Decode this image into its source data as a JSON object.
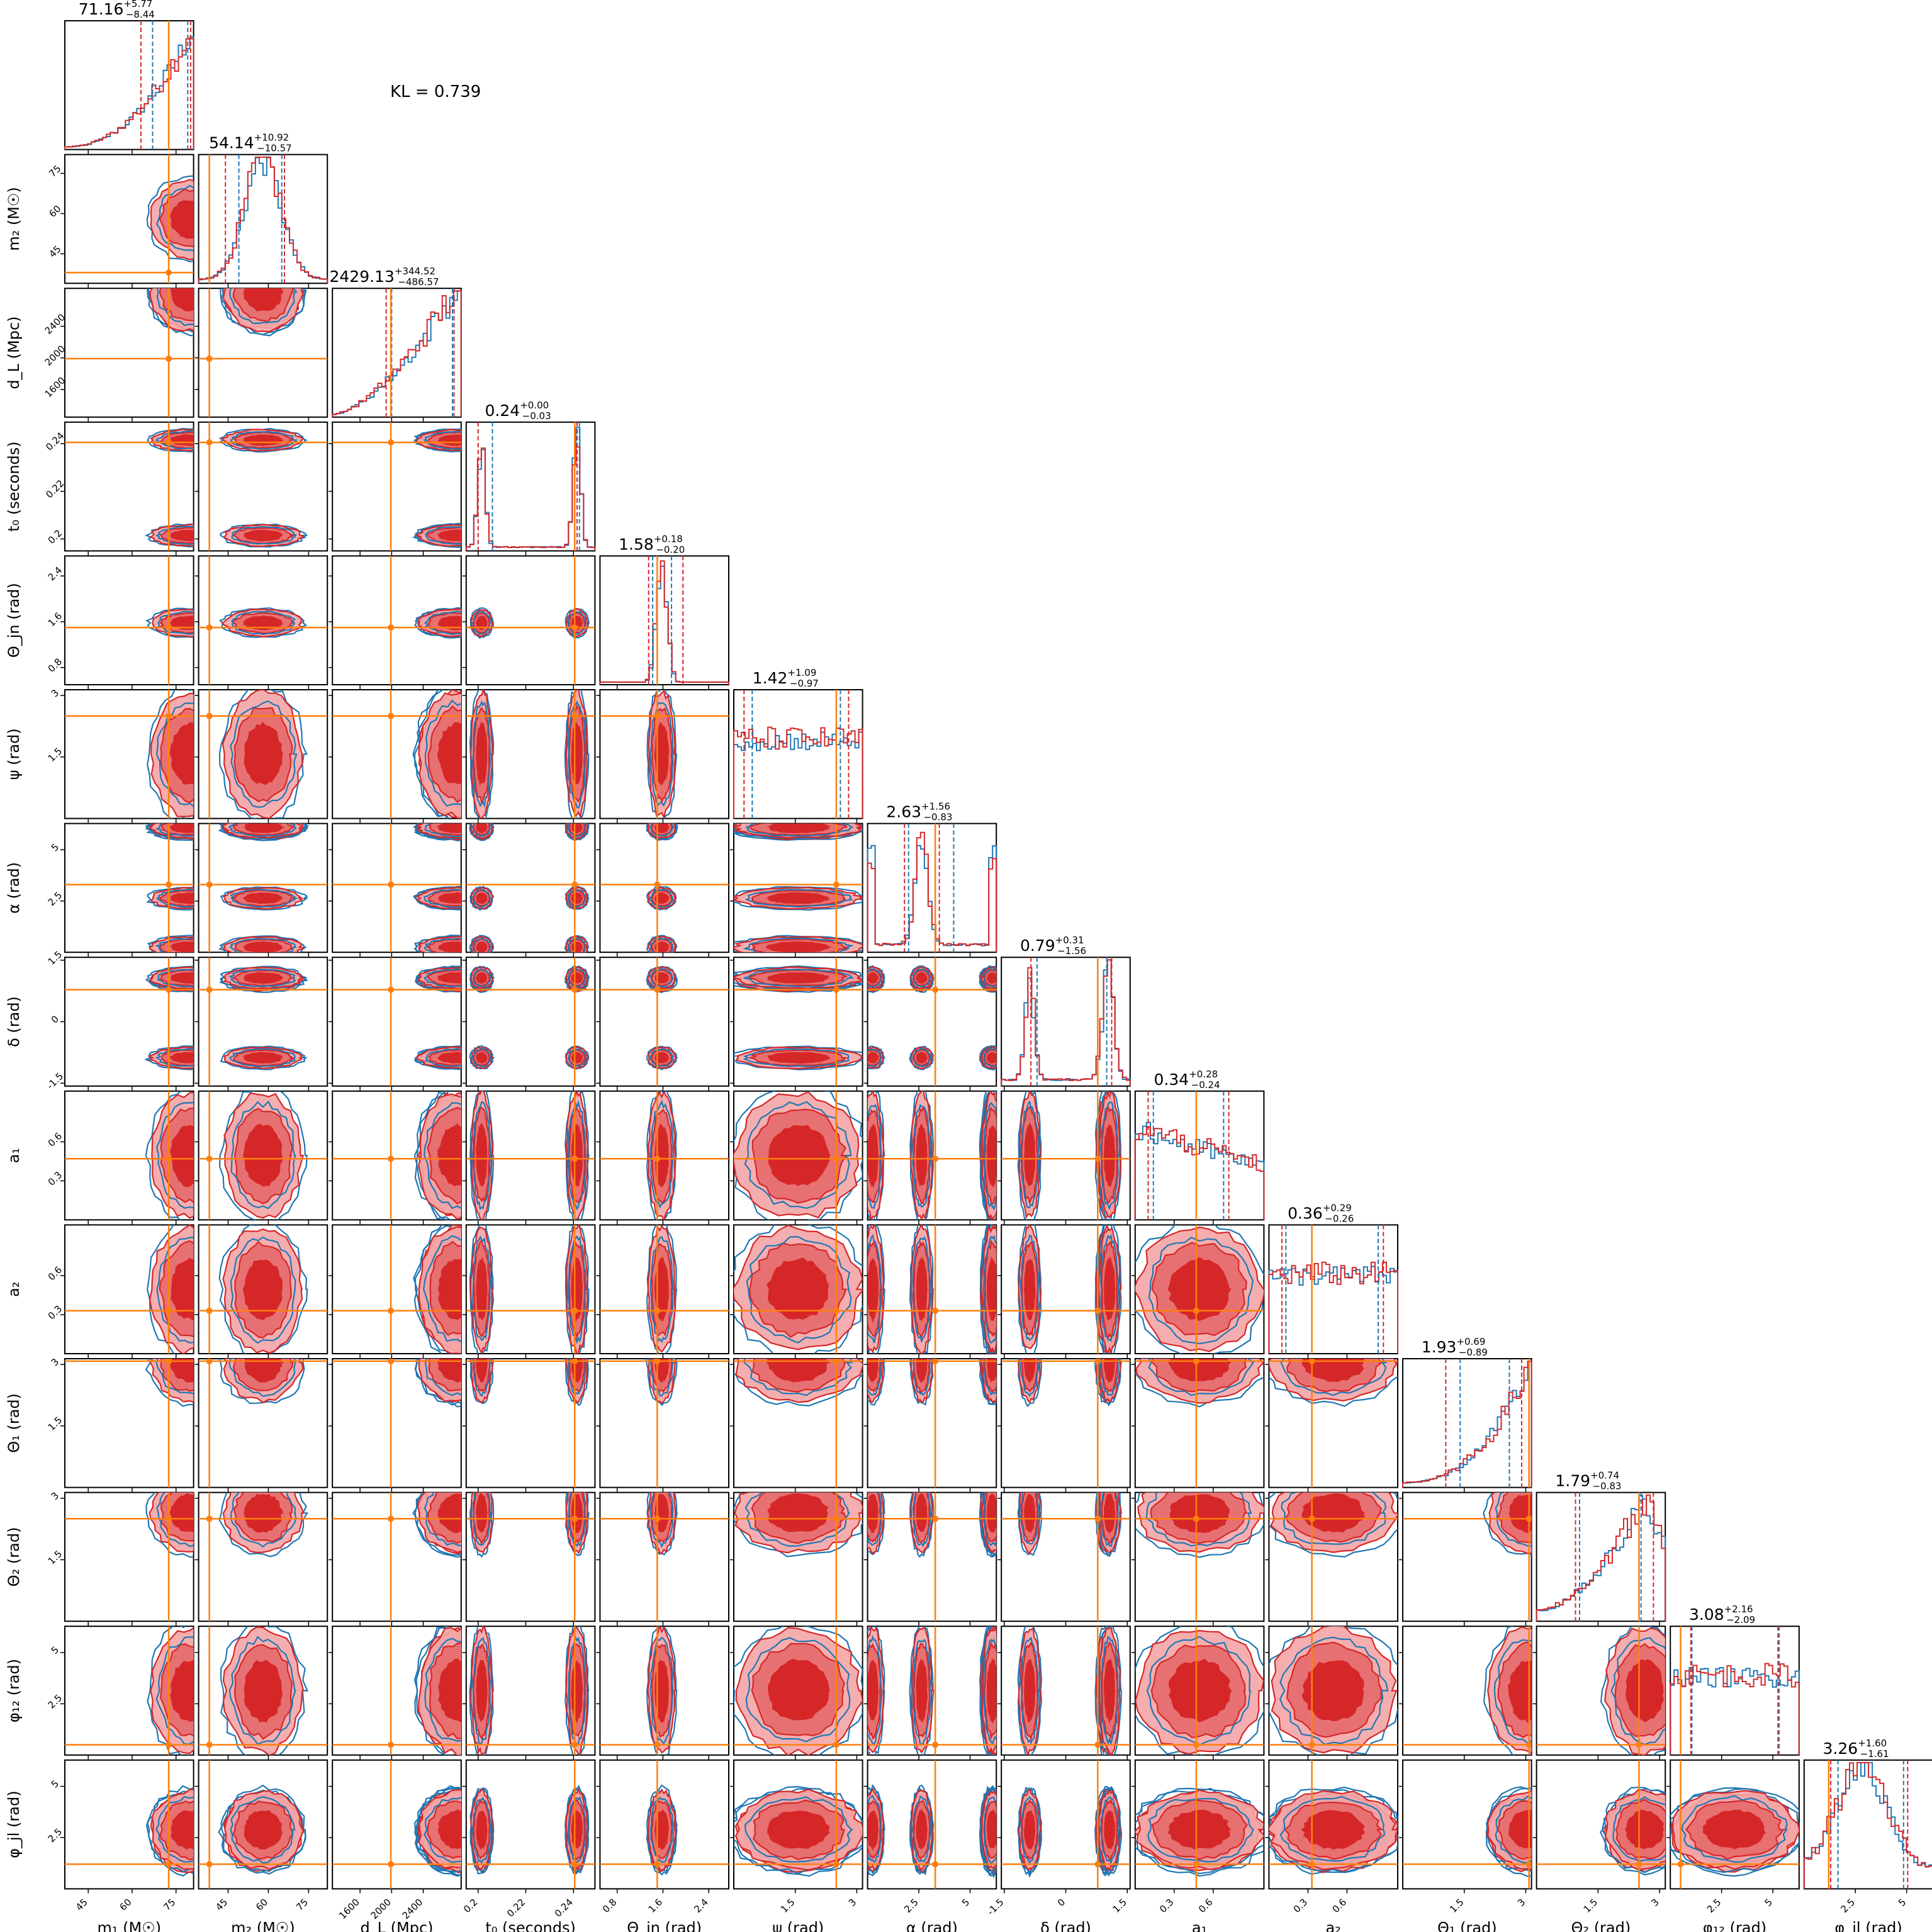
{
  "chart_data": {
    "type": "corner",
    "annotation": "KL = 0.739",
    "colors": {
      "series_a": "#d62728",
      "series_b": "#1f77b4",
      "truth": "#ff7f0e"
    },
    "parameters": [
      {
        "label": "m₁ (M☉)",
        "title": "71.16",
        "plus": "+5.77",
        "minus": "−8.44",
        "range": [
          37,
          81
        ],
        "ticks": [
          45,
          60,
          75
        ],
        "truth": 72.5,
        "q": [
          63,
          67,
          79,
          80
        ],
        "shape": "rise",
        "ytick_labels": false
      },
      {
        "label": "m₂ (M☉)",
        "title": "54.14",
        "plus": "+10.92",
        "minus": "−10.57",
        "range": [
          34,
          82
        ],
        "ticks": [
          45,
          60,
          75
        ],
        "truth": 38,
        "q": [
          44,
          49,
          65,
          66
        ],
        "shape": "hump",
        "ytick_labels": true
      },
      {
        "label": "d_L (Mpc)",
        "title": "2429.13",
        "plus": "+344.52",
        "minus": "−486.57",
        "range": [
          1250,
          2880
        ],
        "ticks": [
          1600,
          2000,
          2400
        ],
        "truth": 1990,
        "q": [
          1930,
          2000,
          2770,
          2790
        ],
        "shape": "rise2",
        "ytick_labels": true
      },
      {
        "label": "t₀ (seconds)",
        "title": "0.24",
        "plus": "+0.00",
        "minus": "−0.03",
        "range": [
          0.195,
          0.249
        ],
        "ticks": [
          0.2,
          0.22,
          0.24
        ],
        "truth": 0.2405,
        "q": [
          0.2,
          0.206,
          0.2425,
          0.2415
        ],
        "shape": "bimodal",
        "ytick_labels": true
      },
      {
        "label": "Θ_jn (rad)",
        "title": "1.58",
        "plus": "+0.18",
        "minus": "−0.20",
        "range": [
          0.5,
          2.75
        ],
        "ticks": [
          0.8,
          1.6,
          2.4
        ],
        "truth": 1.5,
        "q": [
          1.35,
          1.42,
          1.75,
          1.95
        ],
        "shape": "peak",
        "ytick_labels": true
      },
      {
        "label": "ψ (rad)",
        "title": "1.42",
        "plus": "+1.09",
        "minus": "−0.97",
        "range": [
          0,
          3.14
        ],
        "ticks": [
          1.5,
          3.0
        ],
        "truth": 2.5,
        "q": [
          0.25,
          0.45,
          2.6,
          2.8
        ],
        "shape": "flat",
        "ytick_labels": true
      },
      {
        "label": "α (rad)",
        "title": "2.63",
        "plus": "+1.56",
        "minus": "−0.83",
        "range": [
          0,
          6.28
        ],
        "ticks": [
          2.5,
          5.0
        ],
        "truth": 3.3,
        "q": [
          1.8,
          2.0,
          4.2,
          3.5
        ],
        "shape": "alpha",
        "ytick_labels": true
      },
      {
        "label": "δ (rad)",
        "title": "0.79",
        "plus": "+0.31",
        "minus": "−1.56",
        "range": [
          -1.57,
          1.57
        ],
        "ticks": [
          -1.5,
          0.0,
          1.5
        ],
        "truth": 0.78,
        "q": [
          -0.85,
          -0.7,
          1.0,
          1.12
        ],
        "shape": "delta",
        "ytick_labels": true
      },
      {
        "label": "a₁",
        "title": "0.34",
        "plus": "+0.28",
        "minus": "−0.24",
        "range": [
          0,
          0.99
        ],
        "ticks": [
          0.3,
          0.6
        ],
        "truth": 0.47,
        "q": [
          0.1,
          0.14,
          0.68,
          0.72
        ],
        "shape": "decline",
        "ytick_labels": true
      },
      {
        "label": "a₂",
        "title": "0.36",
        "plus": "+0.29",
        "minus": "−0.26",
        "range": [
          0,
          0.99
        ],
        "ticks": [
          0.3,
          0.6
        ],
        "truth": 0.33,
        "q": [
          0.1,
          0.13,
          0.84,
          0.88
        ],
        "shape": "flat",
        "ytick_labels": true
      },
      {
        "label": "Θ₁ (rad)",
        "title": "1.93",
        "plus": "+0.69",
        "minus": "−0.89",
        "range": [
          0,
          3.14
        ],
        "ticks": [
          1.5,
          3.0
        ],
        "truth": 3.08,
        "q": [
          1.05,
          1.4,
          2.6,
          2.9
        ],
        "shape": "rise3",
        "ytick_labels": true
      },
      {
        "label": "Θ₂ (rad)",
        "title": "1.79",
        "plus": "+0.74",
        "minus": "−0.83",
        "range": [
          0,
          3.14
        ],
        "ticks": [
          1.5,
          3.0
        ],
        "truth": 2.5,
        "q": [
          0.95,
          1.05,
          2.55,
          2.85
        ],
        "shape": "rise4",
        "ytick_labels": true
      },
      {
        "label": "φ₁₂ (rad)",
        "title": "3.08",
        "plus": "+2.16",
        "minus": "−2.09",
        "range": [
          0,
          6.28
        ],
        "ticks": [
          2.5,
          5.0
        ],
        "truth": 0.5,
        "q": [
          1.0,
          1.05,
          5.25,
          5.3
        ],
        "shape": "flat",
        "ytick_labels": true
      },
      {
        "label": "φ_jl (rad)",
        "title": "3.26",
        "plus": "+1.60",
        "minus": "−1.61",
        "range": [
          0,
          6.28
        ],
        "ticks": [
          2.5,
          5.0
        ],
        "truth": 1.2,
        "q": [
          1.3,
          1.65,
          4.85,
          5.05
        ],
        "shape": "hump2",
        "ytick_labels": true
      }
    ]
  }
}
